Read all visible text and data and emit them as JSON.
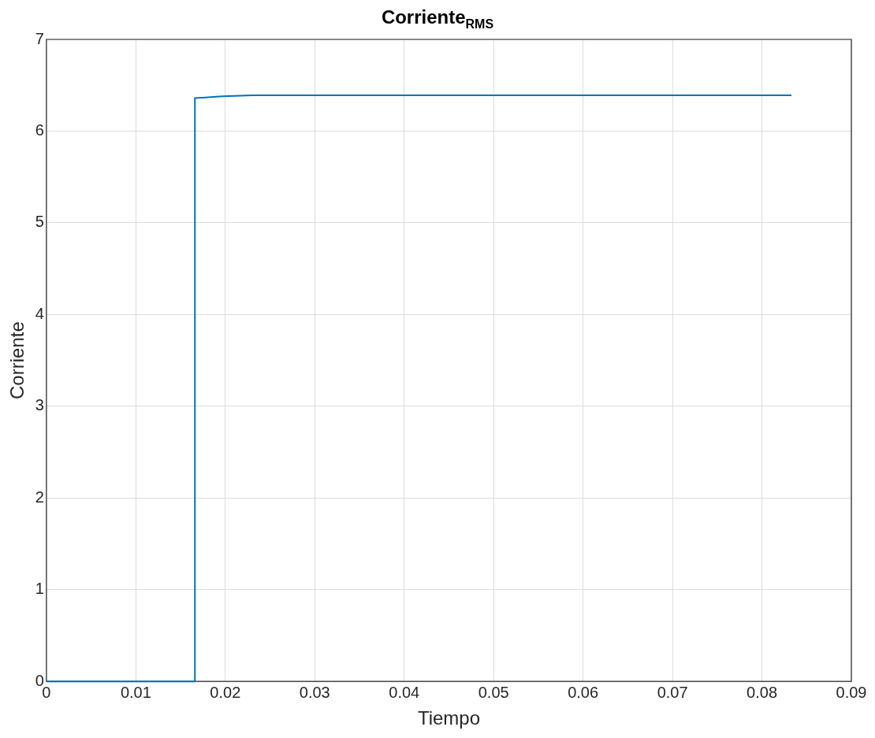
{
  "chart_data": {
    "type": "line",
    "title": "Corriente$_{RMS}$",
    "xlabel": "Tiempo",
    "ylabel": "Corriente",
    "series": [
      {
        "color": "#0072bd",
        "x": [
          0,
          0.0166,
          0.0166,
          0.0184,
          0.0197,
          0.023,
          0.0833
        ],
        "values": [
          0,
          0,
          6.36,
          6.37,
          6.38,
          6.39,
          6.39
        ]
      }
    ],
    "xlim": [
      0,
      0.09
    ],
    "xticks": [
      0,
      0.01,
      0.02,
      0.03,
      0.04,
      0.05,
      0.06,
      0.07,
      0.08,
      0.09
    ],
    "ylim": [
      0,
      7
    ],
    "yticks": [
      0,
      1,
      2,
      3,
      4,
      5,
      6,
      7
    ],
    "grid": true,
    "legend": false,
    "marker": "none",
    "line_style": "solid"
  }
}
